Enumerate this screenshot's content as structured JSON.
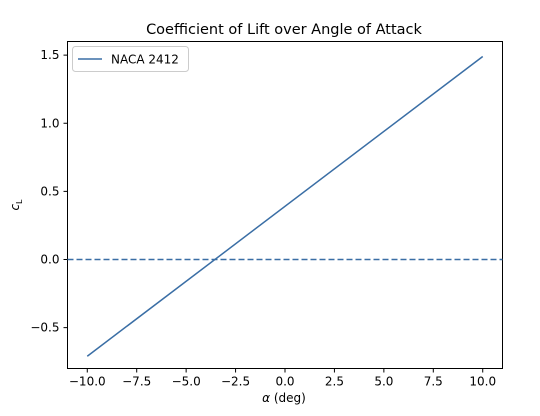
{
  "chart_data": {
    "type": "line",
    "title": "Coefficient of Lift over Angle of Attack",
    "xlabel_symbol": "α",
    "xlabel_unit": " (deg)",
    "ylabel_main": "c",
    "ylabel_sub": "L",
    "xlim": [
      -11,
      11
    ],
    "ylim": [
      -0.8,
      1.6
    ],
    "xticks": [
      -10.0,
      -7.5,
      -5.0,
      -2.5,
      0.0,
      2.5,
      5.0,
      7.5,
      10.0
    ],
    "xtick_labels": [
      "−10.0",
      "−7.5",
      "−5.0",
      "−2.5",
      "0.0",
      "2.5",
      "5.0",
      "7.5",
      "10.0"
    ],
    "yticks": [
      -0.5,
      0.0,
      0.5,
      1.0,
      1.5
    ],
    "ytick_labels": [
      "−0.5",
      "0.0",
      "0.5",
      "1.0",
      "1.5"
    ],
    "grid": false,
    "legend_position": "top-left",
    "series": [
      {
        "name": "NACA 2412",
        "x": [
          -10,
          10
        ],
        "y": [
          -0.71,
          1.49
        ],
        "color": "#3a6ea5",
        "style": "solid"
      }
    ],
    "reference_lines": [
      {
        "orientation": "horizontal",
        "y": 0.0,
        "color": "#3a6ea5",
        "style": "dashed"
      }
    ]
  }
}
